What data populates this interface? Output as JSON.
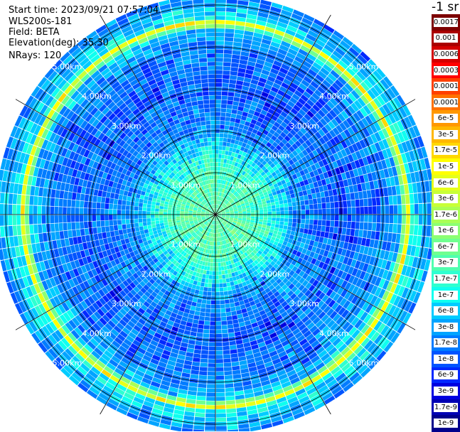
{
  "header": {
    "start_time": "Start time: 2023/09/21 07:57:04",
    "instrument": "WLS200s-181",
    "field": "Field: BETA",
    "elevation": "Elevation(deg): 35.30",
    "nrays": "NRays: 120"
  },
  "chart_data": {
    "type": "heatmap",
    "projection": "polar-ppi",
    "field": "BETA",
    "units": "m-1 sr-1",
    "nrays": 120,
    "elevation_deg": 35.3,
    "range_rings_km": [
      1.0,
      2.0,
      3.0,
      4.0,
      5.0
    ],
    "range_ring_labels": [
      "1.00km",
      "2.00km",
      "3.00km",
      "4.00km",
      "5.00km"
    ],
    "max_range_km": 5.2,
    "radials_every_deg": 30,
    "colorbar": {
      "title": "-1 sr",
      "labels": [
        "0.0017",
        "0.001",
        "0.0006",
        "0.0003",
        "0.00017",
        "0.0001",
        "6e-5",
        "3e-5",
        "1.7e-5",
        "1e-5",
        "6e-6",
        "3e-6",
        "1.7e-6",
        "1e-6",
        "6e-7",
        "3e-7",
        "1.7e-7",
        "1e-7",
        "6e-8",
        "3e-8",
        "1.7e-8",
        "1e-8",
        "6e-9",
        "3e-9",
        "1.7e-9",
        "1e-9"
      ],
      "colors": [
        "#7d0000",
        "#aa0000",
        "#d40000",
        "#ff0000",
        "#ff4000",
        "#ff7000",
        "#ff9800",
        "#ffb800",
        "#ffd800",
        "#ffff00",
        "#e6ff1a",
        "#c8ff37",
        "#aaff55",
        "#8cff73",
        "#6fff90",
        "#50ffaf",
        "#2fffd0",
        "#0fffef",
        "#00ccff",
        "#00a4ff",
        "#007cff",
        "#0054ff",
        "#0028ff",
        "#0000e0",
        "#0000b4",
        "#00008c"
      ]
    },
    "radial_profile_log10_beta": [
      {
        "range_km": 0.0,
        "value": -6.4
      },
      {
        "range_km": 1.0,
        "value": -6.6
      },
      {
        "range_km": 1.5,
        "value": -7.0
      },
      {
        "range_km": 2.0,
        "value": -7.6
      },
      {
        "range_km": 3.0,
        "value": -7.9
      },
      {
        "range_km": 4.0,
        "value": -7.7
      },
      {
        "range_km": 4.4,
        "value": -7.3
      },
      {
        "range_km": 4.6,
        "value": -5.2
      },
      {
        "range_km": 4.7,
        "value": -7.0
      },
      {
        "range_km": 5.2,
        "value": -7.6
      }
    ]
  }
}
